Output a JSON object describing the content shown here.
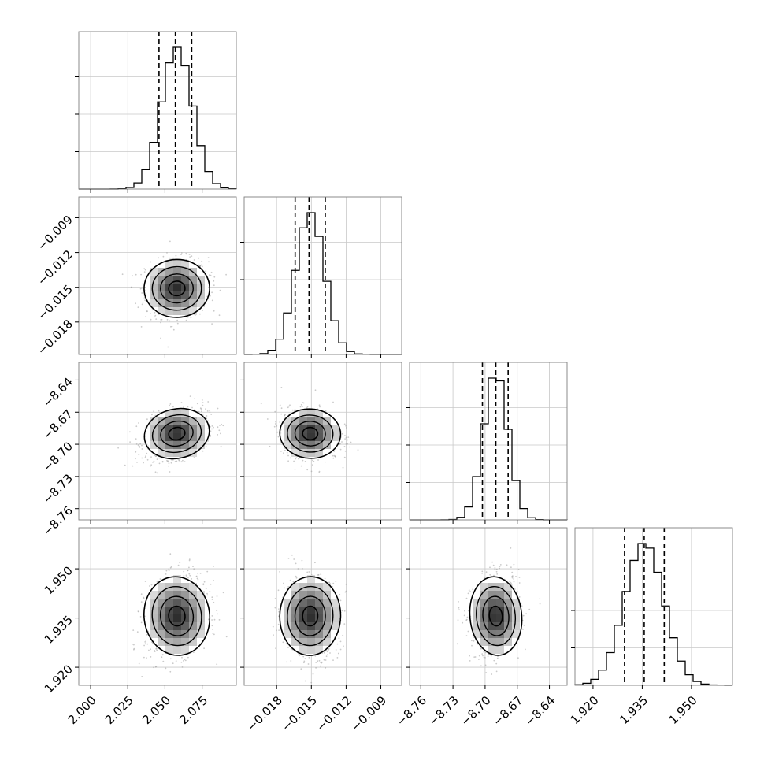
{
  "chart_data": {
    "type": "corner",
    "params": [
      {
        "range": [
          1.992,
          2.098
        ],
        "ticks": [
          "2.000",
          "2.025",
          "2.050",
          "2.075"
        ],
        "tick_values": [
          2.0,
          2.025,
          2.05,
          2.075
        ],
        "quantiles": [
          2.046,
          2.057,
          2.068
        ],
        "mean": 2.058,
        "sd": 0.0105
      },
      {
        "range": [
          -0.0208,
          -0.0072
        ],
        "ticks": [
          "−0.018",
          "−0.015",
          "−0.012",
          "−0.009"
        ],
        "tick_values": [
          -0.018,
          -0.015,
          -0.012,
          -0.009
        ],
        "quantiles": [
          -0.0164,
          -0.0152,
          -0.0138
        ],
        "mean": -0.0151,
        "sd": 0.00125
      },
      {
        "range": [
          -8.7705,
          -8.6235
        ],
        "ticks": [
          "−8.76",
          "−8.73",
          "−8.70",
          "−8.67",
          "−8.64"
        ],
        "tick_values": [
          -8.76,
          -8.73,
          -8.7,
          -8.67,
          -8.64
        ],
        "quantiles": [
          -8.7025,
          -8.69,
          -8.6785
        ],
        "mean": -8.69,
        "sd": 0.0115
      },
      {
        "range": [
          1.9145,
          1.9625
        ],
        "ticks": [
          "1.920",
          "1.935",
          "1.950"
        ],
        "tick_values": [
          1.92,
          1.935,
          1.95
        ],
        "quantiles": [
          1.9296,
          1.9356,
          1.9417
        ],
        "mean": 1.9356,
        "sd": 0.006
      }
    ],
    "correlations": {
      "1-0": 0.05,
      "2-0": 0.35,
      "2-1": -0.1,
      "3-0": 0.2,
      "3-1": -0.05,
      "3-2": 0.15
    },
    "quantile_style": "dashed",
    "histogram_bins": 20,
    "grid": true,
    "points_color": "#9e9e9e",
    "line_color": "#000000"
  }
}
